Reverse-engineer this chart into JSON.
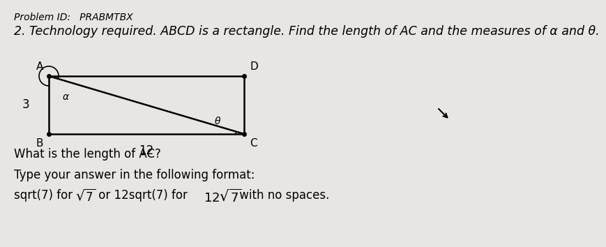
{
  "bg_color": "#e8e6e3",
  "problem_id_text": "Problem ID:   PRABMTBX",
  "title_text": "2. Technology required. ABCD is a rectangle. Find the length of AC and the measures of α and θ.",
  "label_A": "A",
  "label_B": "B",
  "label_C": "C",
  "label_D": "D",
  "side_label": "3",
  "bottom_label": "12",
  "angle_alpha": "α",
  "angle_theta": "θ",
  "question_text": "What is the length of AC?",
  "format_line1": "Type your answer in the following format:",
  "format_sqrt_pre": "sqrt(7) for ",
  "format_sqrt_mid": " or 12sqrt(7) for ",
  "format_sqrt_post": " with no spaces.",
  "font_size_pid": 10,
  "font_size_title": 12.5,
  "font_size_labels": 11.5,
  "font_size_diagram": 11,
  "font_size_body": 12
}
